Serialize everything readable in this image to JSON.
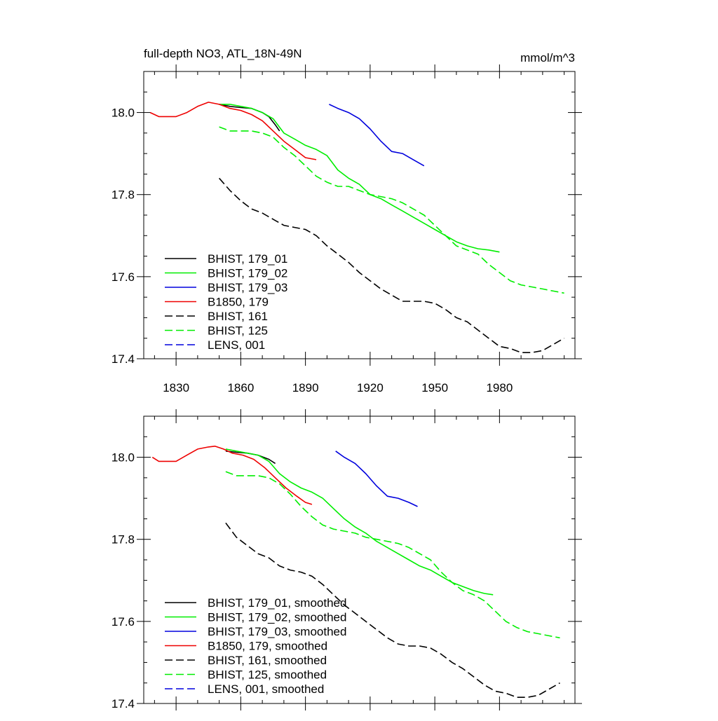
{
  "chart_data": [
    {
      "type": "line",
      "title": "full-depth NO3, ATL_18N-49N",
      "units": "mmol/m^3",
      "xlabel": "",
      "ylabel": "",
      "xlim": [
        1815,
        2015
      ],
      "ylim": [
        17.4,
        18.1
      ],
      "x_ticks": [
        1830,
        1860,
        1890,
        1920,
        1950,
        1980
      ],
      "x_tick_labels": [
        "1830",
        "1860",
        "1890",
        "1920",
        "1950",
        "1980"
      ],
      "y_ticks": [
        17.4,
        17.6,
        17.8,
        18.0
      ],
      "y_tick_labels": [
        "17.4",
        "17.6",
        "17.8",
        "18.0"
      ],
      "grid": false,
      "legend_position": "bottom-left",
      "series": [
        {
          "name": "BHIST, 179_01",
          "color": "#000000",
          "dash": "solid",
          "x": [
            1850,
            1855,
            1860,
            1865,
            1870,
            1873,
            1876,
            1878
          ],
          "y": [
            18.02,
            18.015,
            18.012,
            18.01,
            18.0,
            17.99,
            17.97,
            17.955
          ]
        },
        {
          "name": "BHIST, 179_02",
          "color": "#00ee00",
          "dash": "solid",
          "x": [
            1850,
            1855,
            1860,
            1865,
            1870,
            1875,
            1880,
            1885,
            1890,
            1895,
            1900,
            1905,
            1910,
            1915,
            1920,
            1925,
            1930,
            1935,
            1940,
            1945,
            1950,
            1955,
            1960,
            1965,
            1970,
            1975,
            1980
          ],
          "y": [
            18.02,
            18.02,
            18.015,
            18.01,
            18.0,
            17.985,
            17.95,
            17.935,
            17.92,
            17.91,
            17.895,
            17.86,
            17.84,
            17.825,
            17.8,
            17.79,
            17.775,
            17.76,
            17.745,
            17.73,
            17.715,
            17.7,
            17.685,
            17.675,
            17.668,
            17.665,
            17.66
          ]
        },
        {
          "name": "BHIST, 179_03",
          "color": "#0000dd",
          "dash": "solid",
          "x": [
            1901,
            1905,
            1910,
            1915,
            1920,
            1925,
            1930,
            1935,
            1940,
            1945
          ],
          "y": [
            18.02,
            18.01,
            18.0,
            17.985,
            17.96,
            17.93,
            17.905,
            17.9,
            17.885,
            17.87
          ]
        },
        {
          "name": "B1850, 179",
          "color": "#ee0000",
          "dash": "solid",
          "x": [
            1818,
            1822,
            1826,
            1830,
            1835,
            1840,
            1845,
            1850,
            1855,
            1860,
            1865,
            1870,
            1875,
            1880,
            1885,
            1890,
            1895
          ],
          "y": [
            18.0,
            17.99,
            17.99,
            17.99,
            18.0,
            18.015,
            18.025,
            18.02,
            18.01,
            18.005,
            17.995,
            17.98,
            17.955,
            17.93,
            17.91,
            17.89,
            17.885
          ]
        },
        {
          "name": "BHIST, 161",
          "color": "#000000",
          "dash": "dash",
          "x": [
            1850,
            1855,
            1860,
            1865,
            1870,
            1875,
            1880,
            1885,
            1890,
            1895,
            1900,
            1905,
            1910,
            1915,
            1920,
            1925,
            1930,
            1935,
            1940,
            1945,
            1950,
            1955,
            1960,
            1965,
            1970,
            1975,
            1980,
            1985,
            1990,
            1995,
            2000,
            2005,
            2010
          ],
          "y": [
            17.84,
            17.81,
            17.785,
            17.765,
            17.755,
            17.74,
            17.725,
            17.72,
            17.715,
            17.7,
            17.675,
            17.655,
            17.635,
            17.61,
            17.59,
            17.57,
            17.555,
            17.54,
            17.54,
            17.54,
            17.535,
            17.52,
            17.5,
            17.49,
            17.47,
            17.45,
            17.43,
            17.425,
            17.415,
            17.415,
            17.42,
            17.435,
            17.45
          ]
        },
        {
          "name": "BHIST, 125",
          "color": "#00ee00",
          "dash": "dash",
          "x": [
            1850,
            1855,
            1860,
            1865,
            1870,
            1875,
            1880,
            1885,
            1890,
            1895,
            1900,
            1905,
            1910,
            1915,
            1920,
            1925,
            1930,
            1935,
            1940,
            1945,
            1950,
            1955,
            1960,
            1965,
            1970,
            1975,
            1980,
            1985,
            1990,
            1995,
            2000,
            2005,
            2010
          ],
          "y": [
            17.965,
            17.955,
            17.955,
            17.955,
            17.95,
            17.94,
            17.915,
            17.895,
            17.87,
            17.845,
            17.83,
            17.82,
            17.82,
            17.81,
            17.8,
            17.795,
            17.79,
            17.78,
            17.765,
            17.75,
            17.725,
            17.7,
            17.675,
            17.665,
            17.655,
            17.63,
            17.61,
            17.59,
            17.58,
            17.575,
            17.57,
            17.565,
            17.56
          ]
        },
        {
          "name": "LENS, 001",
          "color": "#0000dd",
          "dash": "dash",
          "x": [],
          "y": []
        }
      ]
    },
    {
      "type": "line",
      "title": "",
      "units": "",
      "xlabel": "",
      "ylabel": "",
      "xlim": [
        1815,
        2015
      ],
      "ylim": [
        17.4,
        18.1
      ],
      "x_ticks": [
        1830,
        1860,
        1890,
        1920,
        1950,
        1980
      ],
      "x_tick_labels": [],
      "y_ticks": [
        17.4,
        17.6,
        17.8,
        18.0
      ],
      "y_tick_labels": [
        "17.4",
        "17.6",
        "17.8",
        "18.0"
      ],
      "grid": false,
      "legend_position": "bottom-left",
      "series": [
        {
          "name": "BHIST, 179_01, smoothed",
          "color": "#000000",
          "dash": "solid",
          "x": [
            1853,
            1858,
            1863,
            1868,
            1873,
            1876
          ],
          "y": [
            18.015,
            18.012,
            18.01,
            18.005,
            17.995,
            17.985
          ]
        },
        {
          "name": "BHIST, 179_02, smoothed",
          "color": "#00ee00",
          "dash": "solid",
          "x": [
            1853,
            1858,
            1863,
            1868,
            1873,
            1878,
            1883,
            1888,
            1893,
            1898,
            1903,
            1908,
            1913,
            1918,
            1923,
            1928,
            1933,
            1938,
            1943,
            1948,
            1953,
            1958,
            1963,
            1968,
            1973,
            1977
          ],
          "y": [
            18.02,
            18.015,
            18.01,
            18.005,
            17.99,
            17.96,
            17.94,
            17.925,
            17.915,
            17.9,
            17.875,
            17.85,
            17.83,
            17.815,
            17.795,
            17.78,
            17.765,
            17.75,
            17.735,
            17.725,
            17.71,
            17.695,
            17.685,
            17.675,
            17.668,
            17.665
          ]
        },
        {
          "name": "BHIST, 179_03, smoothed",
          "color": "#0000dd",
          "dash": "solid",
          "x": [
            1904,
            1908,
            1913,
            1918,
            1923,
            1928,
            1933,
            1938,
            1942
          ],
          "y": [
            18.015,
            18.0,
            17.985,
            17.96,
            17.93,
            17.905,
            17.9,
            17.89,
            17.88
          ]
        },
        {
          "name": "B1850, 179, smoothed",
          "color": "#ee0000",
          "dash": "solid",
          "x": [
            1819,
            1822,
            1826,
            1830,
            1835,
            1840,
            1845,
            1848,
            1852,
            1856,
            1861,
            1866,
            1871,
            1876,
            1881,
            1886,
            1890,
            1893
          ],
          "y": [
            18.0,
            17.99,
            17.99,
            17.99,
            18.005,
            18.02,
            18.025,
            18.027,
            18.02,
            18.01,
            18.005,
            17.995,
            17.975,
            17.95,
            17.925,
            17.905,
            17.89,
            17.885
          ]
        },
        {
          "name": "BHIST, 161, smoothed",
          "color": "#000000",
          "dash": "dash",
          "x": [
            1853,
            1858,
            1863,
            1868,
            1873,
            1878,
            1883,
            1888,
            1893,
            1898,
            1903,
            1908,
            1913,
            1918,
            1923,
            1928,
            1933,
            1938,
            1943,
            1948,
            1953,
            1958,
            1963,
            1968,
            1973,
            1978,
            1983,
            1988,
            1993,
            1998,
            2003,
            2008
          ],
          "y": [
            17.84,
            17.805,
            17.785,
            17.765,
            17.755,
            17.735,
            17.725,
            17.72,
            17.71,
            17.69,
            17.665,
            17.64,
            17.62,
            17.6,
            17.58,
            17.56,
            17.545,
            17.54,
            17.54,
            17.535,
            17.52,
            17.5,
            17.485,
            17.465,
            17.445,
            17.43,
            17.425,
            17.415,
            17.415,
            17.42,
            17.435,
            17.45
          ]
        },
        {
          "name": "BHIST, 125, smoothed",
          "color": "#00ee00",
          "dash": "dash",
          "x": [
            1853,
            1858,
            1863,
            1868,
            1873,
            1878,
            1883,
            1888,
            1893,
            1898,
            1903,
            1908,
            1913,
            1918,
            1923,
            1928,
            1933,
            1938,
            1943,
            1948,
            1953,
            1958,
            1963,
            1968,
            1973,
            1978,
            1983,
            1988,
            1993,
            1998,
            2003,
            2008
          ],
          "y": [
            17.965,
            17.955,
            17.955,
            17.955,
            17.95,
            17.935,
            17.91,
            17.88,
            17.855,
            17.835,
            17.825,
            17.82,
            17.815,
            17.805,
            17.8,
            17.795,
            17.79,
            17.78,
            17.765,
            17.75,
            17.72,
            17.695,
            17.675,
            17.665,
            17.65,
            17.625,
            17.6,
            17.585,
            17.575,
            17.57,
            17.565,
            17.56
          ]
        },
        {
          "name": "LENS, 001, smoothed",
          "color": "#0000dd",
          "dash": "dash",
          "x": [],
          "y": []
        }
      ]
    }
  ]
}
